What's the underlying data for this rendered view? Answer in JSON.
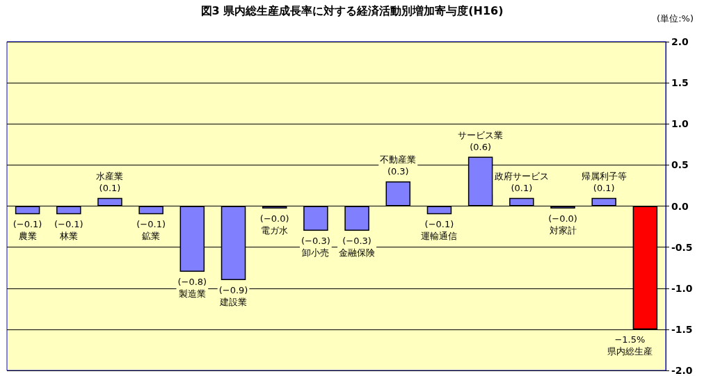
{
  "chart_data": {
    "type": "bar",
    "title": "図3 県内総生産成長率に対する経済活動別増加寄与度(H16)",
    "annotations": [
      "(単位:%)"
    ],
    "categories": [
      "農業",
      "林業",
      "水産業",
      "鉱業",
      "製造業",
      "建設業",
      "電ガ水",
      "卸小売",
      "金融保険",
      "不動産業",
      "運輸通信",
      "サービス業",
      "政府サービス",
      "対家計",
      "帰属利子等",
      "県内総生産"
    ],
    "values": [
      -0.1,
      -0.1,
      0.1,
      -0.1,
      -0.8,
      -0.9,
      -0.03,
      -0.3,
      -0.3,
      0.3,
      -0.1,
      0.6,
      0.1,
      -0.03,
      0.1,
      -1.5
    ],
    "value_labels": [
      "(−0.1)",
      "(−0.1)",
      "(0.1)",
      "(−0.1)",
      "(−0.8)",
      "(−0.9)",
      "(−0.0)",
      "(−0.3)",
      "(−0.3)",
      "(0.3)",
      "(−0.1)",
      "(0.6)",
      "(0.1)",
      "(−0.0)",
      "(0.1)",
      "−1.5%"
    ],
    "colors": [
      "#8080ff",
      "#8080ff",
      "#8080ff",
      "#8080ff",
      "#8080ff",
      "#8080ff",
      "#8080ff",
      "#8080ff",
      "#8080ff",
      "#8080ff",
      "#8080ff",
      "#8080ff",
      "#8080ff",
      "#8080ff",
      "#8080ff",
      "#ff0000"
    ],
    "ylim": [
      -2,
      2
    ],
    "yticks": [
      {
        "value": -2,
        "label": "-2.0"
      },
      {
        "value": -1.5,
        "label": "-1.5"
      },
      {
        "value": -1,
        "label": "-1.0"
      },
      {
        "value": -0.5,
        "label": "-0.5"
      },
      {
        "value": 0,
        "label": "0.0"
      },
      {
        "value": 0.5,
        "label": "0.5"
      },
      {
        "value": 1,
        "label": "1.0"
      },
      {
        "value": 1.5,
        "label": "1.5"
      },
      {
        "value": 2,
        "label": "2.0"
      }
    ],
    "grid": "y"
  }
}
